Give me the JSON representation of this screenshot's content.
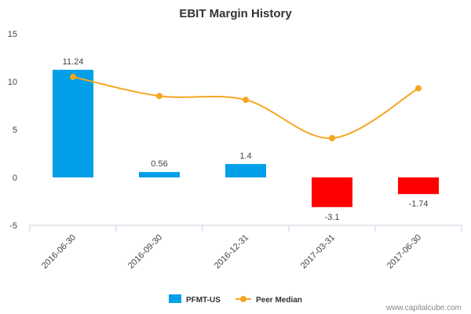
{
  "chart_data": {
    "type": "bar",
    "title": "EBIT Margin History",
    "categories": [
      "2016-06-30",
      "2016-09-30",
      "2016-12-31",
      "2017-03-31",
      "2017-06-30"
    ],
    "series": [
      {
        "name": "PFMT-US",
        "type": "bar",
        "values": [
          11.24,
          0.56,
          1.4,
          -3.1,
          -1.74
        ],
        "labels": [
          "11.24",
          "0.56",
          "1.4",
          "-3.1",
          "-1.74"
        ],
        "color_positive": "#009fe8",
        "color_negative": "#ff0000"
      },
      {
        "name": "Peer Median",
        "type": "line",
        "values": [
          10.5,
          8.5,
          8.1,
          4.1,
          9.3
        ],
        "color": "#f5a623"
      }
    ],
    "ylim": [
      -5,
      15
    ],
    "yticks": [
      "-5",
      "0",
      "5",
      "10",
      "15"
    ],
    "grid": false,
    "legend_position": "bottom-center"
  },
  "credit": "www.capitalcube.com"
}
